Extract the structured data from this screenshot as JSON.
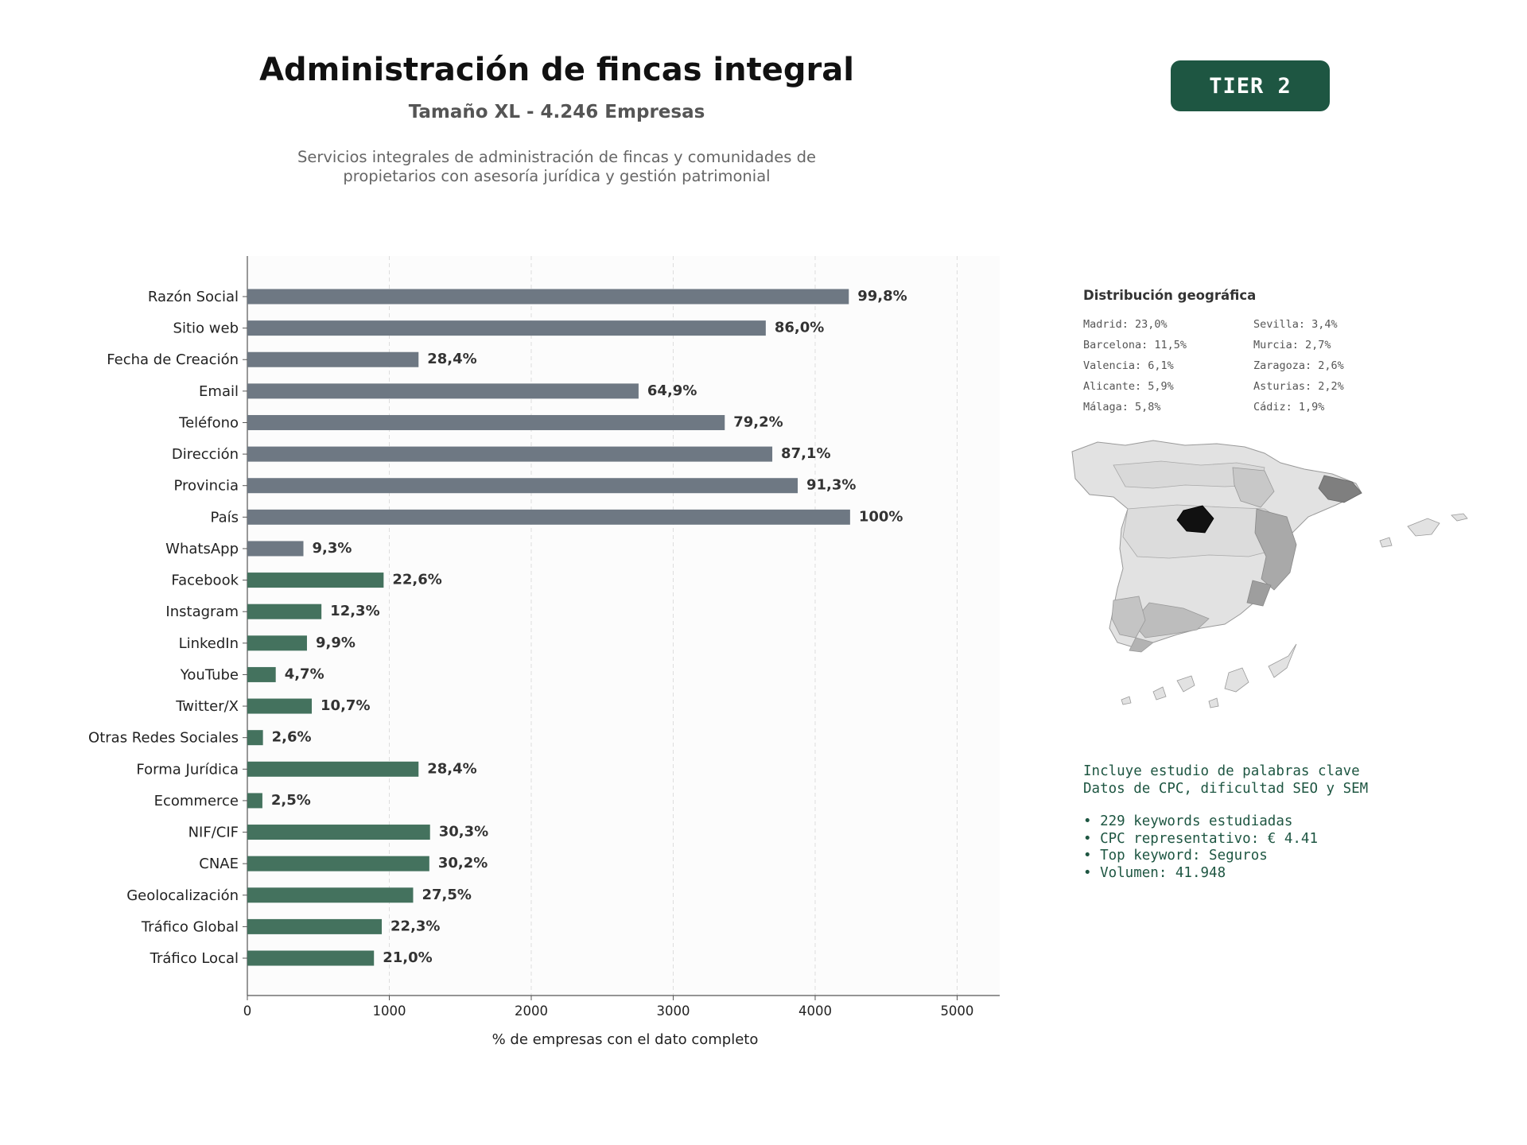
{
  "header": {
    "title": "Administración de fincas integral",
    "subtitle": "Tamaño XL - 4.246 Empresas",
    "description_line1": "Servicios integrales de administración de fincas y comunidades de",
    "description_line2": "propietarios con asesoría jurídica y gestión patrimonial",
    "tier": "TIER 2"
  },
  "colors": {
    "gray_bar": "#6e7883",
    "green_bar": "#44725e",
    "badge": "#1e5642",
    "keyword_text": "#1e5642"
  },
  "chart_data": {
    "type": "bar",
    "orientation": "horizontal",
    "title": "",
    "xlabel": "% de empresas con el dato completo",
    "ylabel": "",
    "xlim": [
      0,
      5300
    ],
    "xticks": [
      0,
      1000,
      2000,
      3000,
      4000,
      5000
    ],
    "grid": "vertical dashed",
    "categories": [
      "Razón Social",
      "Sitio web",
      "Fecha de Creación",
      "Email",
      "Teléfono",
      "Dirección",
      "Provincia",
      "País",
      "WhatsApp",
      "Facebook",
      "Instagram",
      "LinkedIn",
      "YouTube",
      "Twitter/X",
      "Otras Redes Sociales",
      "Forma Jurídica",
      "Ecommerce",
      "NIF/CIF",
      "CNAE",
      "Geolocalización",
      "Tráfico Global",
      "Tráfico Local"
    ],
    "values": [
      4237,
      3652,
      1206,
      2756,
      3363,
      3698,
      3877,
      4246,
      395,
      960,
      522,
      420,
      200,
      454,
      110,
      1206,
      106,
      1287,
      1282,
      1168,
      947,
      892
    ],
    "labels": [
      "99,8%",
      "86,0%",
      "28,4%",
      "64,9%",
      "79,2%",
      "87,1%",
      "91,3%",
      "100%",
      "9,3%",
      "22,6%",
      "12,3%",
      "9,9%",
      "4,7%",
      "10,7%",
      "2,6%",
      "28,4%",
      "2,5%",
      "30,3%",
      "30,2%",
      "27,5%",
      "22,3%",
      "21,0%"
    ],
    "bar_groups": [
      "gray",
      "gray",
      "gray",
      "gray",
      "gray",
      "gray",
      "gray",
      "gray",
      "gray",
      "green",
      "green",
      "green",
      "green",
      "green",
      "green",
      "green",
      "green",
      "green",
      "green",
      "green",
      "green",
      "green"
    ]
  },
  "geo": {
    "title": "Distribución geográfica",
    "entries": [
      "Madrid: 23,0%",
      "Sevilla: 3,4%",
      "Barcelona: 11,5%",
      "Murcia: 2,7%",
      "Valencia: 6,1%",
      "Zaragoza: 2,6%",
      "Alicante: 5,9%",
      "Asturias: 2,2%",
      "Málaga: 5,8%",
      "Cádiz: 1,9%"
    ]
  },
  "keywords": {
    "line1": "Incluye estudio de palabras clave",
    "line2": "Datos de CPC, dificultad SEO y SEM",
    "bullets": [
      "• 229 keywords estudiadas",
      "• CPC representativo: € 4.41",
      "• Top keyword: Seguros",
      "• Volumen: 41.948"
    ]
  }
}
